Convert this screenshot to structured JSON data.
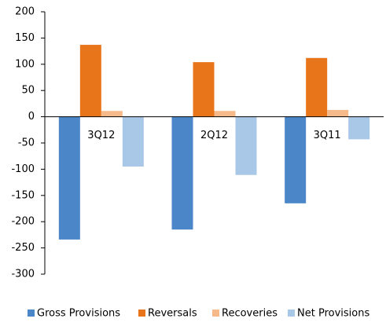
{
  "chart_data": {
    "type": "bar",
    "categories": [
      "3Q12",
      "2Q12",
      "3Q11"
    ],
    "series": [
      {
        "name": "Gross Provisions",
        "color": "#4a86c8",
        "values": [
          -234,
          -215,
          -165
        ]
      },
      {
        "name": "Reversals",
        "color": "#e8751a",
        "values": [
          137,
          104,
          112
        ]
      },
      {
        "name": "Recoveries",
        "color": "#f6b98a",
        "values": [
          11,
          11,
          13
        ]
      },
      {
        "name": "Net Provisions",
        "color": "#a9c8e8",
        "values": [
          -95,
          -111,
          -43
        ]
      }
    ],
    "ylim": [
      -300,
      200
    ],
    "yticks": [
      -300,
      -250,
      -200,
      -150,
      -100,
      -50,
      0,
      50,
      100,
      150,
      200
    ],
    "grid": false,
    "legend": "bottom"
  }
}
